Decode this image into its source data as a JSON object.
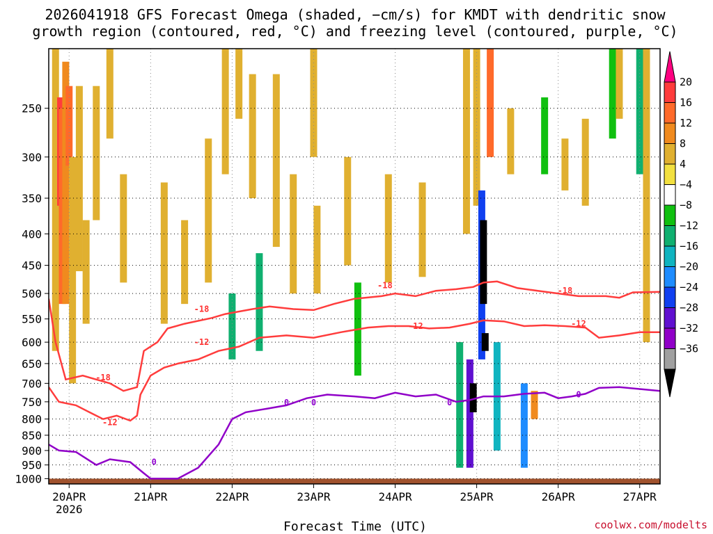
{
  "title_line1": "2026041918 GFS Forecast Omega (shaded, −cm/s) for KMDT with dendritic snow",
  "title_line2": "growth region (contoured, red, °C) and freezing level (contoured, purple, °C)",
  "xlabel": "Forecast Time (UTC)",
  "credit": "coolwx.com/modelts",
  "chart_data": {
    "type": "heatmap",
    "title": "2026041918 GFS Forecast Omega (shaded, −cm/s) for KMDT with dendritic snow growth region (contoured, red, °C) and freezing level (contoured, purple, °C)",
    "xlabel": "Forecast Time (UTC)",
    "ylabel": "",
    "x_ticks": [
      "20APR",
      "21APR",
      "22APR",
      "23APR",
      "24APR",
      "25APR",
      "26APR",
      "27APR"
    ],
    "x_tick_hours": [
      6,
      30,
      54,
      78,
      102,
      126,
      150,
      174
    ],
    "x_sub_label": "2026",
    "x_range_hours": [
      0,
      180
    ],
    "y_scale": "log-pressure (hPa)",
    "y_ticks": [
      250,
      300,
      350,
      400,
      450,
      500,
      550,
      600,
      650,
      700,
      750,
      800,
      850,
      900,
      950,
      1000
    ],
    "y_range_hpa": [
      200,
      1020
    ],
    "grid": true,
    "colorbar": {
      "labels": [
        "20",
        "16",
        "12",
        "8",
        "4",
        "−4",
        "−8",
        "−12",
        "−16",
        "−20",
        "−24",
        "−28",
        "−32",
        "−36"
      ],
      "bins": [
        {
          "color": "#ff0080"
        },
        {
          "color": "#ff3c3c"
        },
        {
          "color": "#ff6a2a"
        },
        {
          "color": "#f08a1e"
        },
        {
          "color": "#e0b030"
        },
        {
          "color": "#f2e040"
        },
        {
          "color": "#ffffff"
        },
        {
          "color": "#10c010"
        },
        {
          "color": "#10b070"
        },
        {
          "color": "#10b4c0"
        },
        {
          "color": "#1e8cff"
        },
        {
          "color": "#1040f0"
        },
        {
          "color": "#6010d0"
        },
        {
          "color": "#9000c8"
        },
        {
          "color": "#a0a0a0"
        },
        {
          "color": "#000000"
        }
      ]
    },
    "ground_level_hpa": 1000,
    "ground_color": "#a0522d",
    "omega_cells": [
      {
        "t": 2,
        "p0": 200,
        "p1": 620,
        "v": 8
      },
      {
        "t": 3.5,
        "p0": 240,
        "p1": 360,
        "v": 18
      },
      {
        "t": 4,
        "p0": 250,
        "p1": 520,
        "v": 14
      },
      {
        "t": 5,
        "p0": 210,
        "p1": 520,
        "v": 10
      },
      {
        "t": 6,
        "p0": 230,
        "p1": 310,
        "v": 16
      },
      {
        "t": 7,
        "p0": 300,
        "p1": 700,
        "v": 6
      },
      {
        "t": 9,
        "p0": 230,
        "p1": 460,
        "v": 8
      },
      {
        "t": 11,
        "p0": 380,
        "p1": 560,
        "v": 6
      },
      {
        "t": 14,
        "p0": 230,
        "p1": 380,
        "v": 6
      },
      {
        "t": 18,
        "p0": 200,
        "p1": 280,
        "v": 6
      },
      {
        "t": 22,
        "p0": 320,
        "p1": 480,
        "v": 5
      },
      {
        "t": 27,
        "p0": 330,
        "p1": 420,
        "v": -6
      },
      {
        "t": 34,
        "p0": 330,
        "p1": 560,
        "v": 5
      },
      {
        "t": 40,
        "p0": 380,
        "p1": 520,
        "v": 6
      },
      {
        "t": 47,
        "p0": 280,
        "p1": 480,
        "v": 5
      },
      {
        "t": 52,
        "p0": 200,
        "p1": 320,
        "v": 6
      },
      {
        "t": 54,
        "p0": 500,
        "p1": 640,
        "v": -12
      },
      {
        "t": 56,
        "p0": 200,
        "p1": 260,
        "v": 6
      },
      {
        "t": 60,
        "p0": 220,
        "p1": 350,
        "v": 5
      },
      {
        "t": 62,
        "p0": 430,
        "p1": 620,
        "v": -14
      },
      {
        "t": 64,
        "p0": 200,
        "p1": 280,
        "v": -6
      },
      {
        "t": 67,
        "p0": 220,
        "p1": 420,
        "v": 5
      },
      {
        "t": 72,
        "p0": 320,
        "p1": 500,
        "v": 6
      },
      {
        "t": 78,
        "p0": 200,
        "p1": 300,
        "v": 6
      },
      {
        "t": 79,
        "p0": 360,
        "p1": 500,
        "v": 5
      },
      {
        "t": 84,
        "p0": 200,
        "p1": 260,
        "v": -6
      },
      {
        "t": 88,
        "p0": 300,
        "p1": 450,
        "v": 6
      },
      {
        "t": 91,
        "p0": 480,
        "p1": 680,
        "v": -8
      },
      {
        "t": 96,
        "p0": 200,
        "p1": 300,
        "v": -6
      },
      {
        "t": 100,
        "p0": 320,
        "p1": 480,
        "v": 5
      },
      {
        "t": 106,
        "p0": 200,
        "p1": 280,
        "v": -7
      },
      {
        "t": 110,
        "p0": 330,
        "p1": 470,
        "v": 5
      },
      {
        "t": 114,
        "p0": 200,
        "p1": 270,
        "v": -7
      },
      {
        "t": 121,
        "p0": 600,
        "p1": 960,
        "v": -12
      },
      {
        "t": 123,
        "p0": 200,
        "p1": 400,
        "v": 6
      },
      {
        "t": 124,
        "p0": 640,
        "p1": 960,
        "v": -28
      },
      {
        "t": 125,
        "p0": 700,
        "p1": 780,
        "v": -36
      },
      {
        "t": 126,
        "p0": 200,
        "p1": 360,
        "v": 8
      },
      {
        "t": 127.5,
        "p0": 340,
        "p1": 640,
        "v": -24
      },
      {
        "t": 128,
        "p0": 380,
        "p1": 520,
        "v": -36
      },
      {
        "t": 128.5,
        "p0": 580,
        "p1": 620,
        "v": -36
      },
      {
        "t": 130,
        "p0": 200,
        "p1": 300,
        "v": 14
      },
      {
        "t": 132,
        "p0": 600,
        "p1": 900,
        "v": -16
      },
      {
        "t": 136,
        "p0": 250,
        "p1": 320,
        "v": 6
      },
      {
        "t": 140,
        "p0": 700,
        "p1": 960,
        "v": -20
      },
      {
        "t": 143,
        "p0": 720,
        "p1": 800,
        "v": 10
      },
      {
        "t": 146,
        "p0": 240,
        "p1": 320,
        "v": -8
      },
      {
        "t": 152,
        "p0": 280,
        "p1": 340,
        "v": 6
      },
      {
        "t": 158,
        "p0": 260,
        "p1": 360,
        "v": 8
      },
      {
        "t": 166,
        "p0": 200,
        "p1": 280,
        "v": -8
      },
      {
        "t": 168,
        "p0": 200,
        "p1": 260,
        "v": 6
      },
      {
        "t": 174,
        "p0": 200,
        "p1": 320,
        "v": -12
      },
      {
        "t": 176,
        "p0": 200,
        "p1": 600,
        "v": 6
      }
    ],
    "contours": [
      {
        "name": "-18",
        "color": "#ff3c3c",
        "points": [
          [
            0,
            510
          ],
          [
            2,
            600
          ],
          [
            5,
            690
          ],
          [
            10,
            680
          ],
          [
            14,
            690
          ],
          [
            18,
            700
          ],
          [
            22,
            720
          ],
          [
            26,
            710
          ],
          [
            28,
            620
          ],
          [
            32,
            600
          ],
          [
            35,
            570
          ],
          [
            40,
            560
          ],
          [
            48,
            548
          ],
          [
            52,
            540
          ],
          [
            60,
            530
          ],
          [
            65,
            525
          ],
          [
            72,
            530
          ],
          [
            78,
            532
          ],
          [
            84,
            520
          ],
          [
            90,
            510
          ],
          [
            98,
            505
          ],
          [
            102,
            500
          ],
          [
            108,
            505
          ],
          [
            114,
            495
          ],
          [
            120,
            492
          ],
          [
            125,
            488
          ],
          [
            128,
            480
          ],
          [
            132,
            478
          ],
          [
            138,
            490
          ],
          [
            144,
            495
          ],
          [
            150,
            500
          ],
          [
            156,
            505
          ],
          [
            164,
            505
          ],
          [
            168,
            508
          ],
          [
            172,
            498
          ],
          [
            180,
            497
          ]
        ]
      },
      {
        "name": "-12",
        "color": "#ff3c3c",
        "points": [
          [
            0,
            710
          ],
          [
            3,
            750
          ],
          [
            8,
            760
          ],
          [
            12,
            780
          ],
          [
            16,
            800
          ],
          [
            20,
            790
          ],
          [
            24,
            805
          ],
          [
            26,
            790
          ],
          [
            27,
            730
          ],
          [
            30,
            680
          ],
          [
            34,
            660
          ],
          [
            38,
            650
          ],
          [
            44,
            640
          ],
          [
            50,
            620
          ],
          [
            56,
            610
          ],
          [
            62,
            590
          ],
          [
            70,
            585
          ],
          [
            78,
            590
          ],
          [
            86,
            578
          ],
          [
            94,
            568
          ],
          [
            100,
            565
          ],
          [
            106,
            565
          ],
          [
            112,
            570
          ],
          [
            118,
            568
          ],
          [
            124,
            560
          ],
          [
            128,
            553
          ],
          [
            134,
            555
          ],
          [
            140,
            565
          ],
          [
            146,
            563
          ],
          [
            152,
            565
          ],
          [
            158,
            568
          ],
          [
            162,
            590
          ],
          [
            168,
            585
          ],
          [
            174,
            578
          ],
          [
            180,
            578
          ]
        ]
      },
      {
        "name": "0",
        "color": "#9000c8",
        "points": [
          [
            0,
            880
          ],
          [
            3,
            900
          ],
          [
            8,
            905
          ],
          [
            14,
            950
          ],
          [
            18,
            930
          ],
          [
            24,
            940
          ],
          [
            28,
            980
          ],
          [
            30,
            1000
          ],
          [
            38,
            1000
          ],
          [
            44,
            960
          ],
          [
            50,
            880
          ],
          [
            54,
            800
          ],
          [
            58,
            780
          ],
          [
            64,
            770
          ],
          [
            70,
            760
          ],
          [
            76,
            740
          ],
          [
            82,
            730
          ],
          [
            90,
            735
          ],
          [
            96,
            740
          ],
          [
            102,
            725
          ],
          [
            108,
            735
          ],
          [
            114,
            730
          ],
          [
            120,
            750
          ],
          [
            124,
            745
          ],
          [
            128,
            735
          ],
          [
            134,
            735
          ],
          [
            140,
            728
          ],
          [
            146,
            725
          ],
          [
            150,
            740
          ],
          [
            154,
            735
          ],
          [
            158,
            728
          ],
          [
            162,
            712
          ],
          [
            168,
            710
          ],
          [
            174,
            715
          ],
          [
            180,
            720
          ]
        ]
      }
    ],
    "contour_labels": [
      {
        "text": "-18",
        "t": 45,
        "p": 530,
        "color": "#ff3c3c"
      },
      {
        "text": "-18",
        "t": 99,
        "p": 485,
        "color": "#ff3c3c"
      },
      {
        "text": "-18",
        "t": 152,
        "p": 495,
        "color": "#ff3c3c"
      },
      {
        "text": "-18",
        "t": 16,
        "p": 685,
        "color": "#ff3c3c"
      },
      {
        "text": "-12",
        "t": 45,
        "p": 600,
        "color": "#ff3c3c"
      },
      {
        "text": "-12",
        "t": 108,
        "p": 565,
        "color": "#ff3c3c"
      },
      {
        "text": "-12",
        "t": 156,
        "p": 560,
        "color": "#ff3c3c"
      },
      {
        "text": "-12",
        "t": 18,
        "p": 810,
        "color": "#ff3c3c"
      },
      {
        "text": "0",
        "t": 31,
        "p": 940,
        "color": "#9000c8"
      },
      {
        "text": "0",
        "t": 70,
        "p": 752,
        "color": "#9000c8"
      },
      {
        "text": "0",
        "t": 78,
        "p": 752,
        "color": "#9000c8"
      },
      {
        "text": "0",
        "t": 118,
        "p": 752,
        "color": "#9000c8"
      },
      {
        "text": "0",
        "t": 156,
        "p": 730,
        "color": "#9000c8"
      }
    ]
  }
}
